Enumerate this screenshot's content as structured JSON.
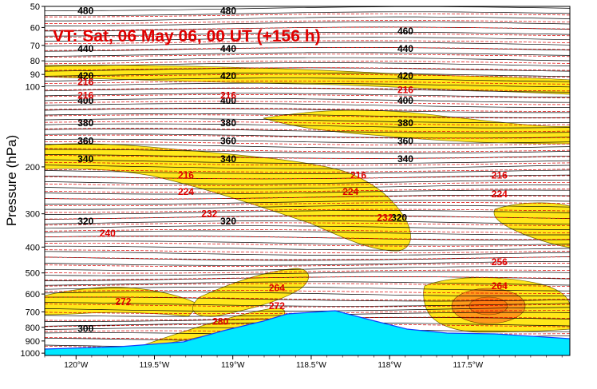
{
  "chart_data": {
    "type": "cross-section",
    "title": "VT:  Sat, 06 May 06, 00 UT (+156 h)",
    "ylabel": "Pressure (hPa)",
    "xlabel": "",
    "y_scale": "log",
    "y_reversed": true,
    "ylim": [
      1020,
      50
    ],
    "xlim": [
      -120.2,
      -116.85
    ],
    "y_ticks": [
      50,
      60,
      70,
      80,
      90,
      100,
      200,
      300,
      400,
      500,
      600,
      700,
      800,
      900,
      1000
    ],
    "x_ticks": [
      {
        "value": -120.0,
        "label": "120°W"
      },
      {
        "value": -119.5,
        "label": "119.5°W"
      },
      {
        "value": -119.0,
        "label": "119°W"
      },
      {
        "value": -118.5,
        "label": "118.5°W"
      },
      {
        "value": -118.0,
        "label": "118°W"
      },
      {
        "value": -117.5,
        "label": "117.5°W"
      }
    ],
    "colors": {
      "theta_lines": "#000000",
      "temperature_lines": "#e00000",
      "fill_low": "#ffe81a",
      "fill_high": "#ff9a1a",
      "terrain": "#00e8ff",
      "terrain_edge": "#1040ff"
    },
    "theta_labels": [
      {
        "x": -119.99,
        "p": 52,
        "text": "480"
      },
      {
        "x": -119.08,
        "p": 52,
        "text": "480"
      },
      {
        "x": -117.95,
        "p": 62,
        "text": "460"
      },
      {
        "x": -119.99,
        "p": 72,
        "text": "440"
      },
      {
        "x": -119.08,
        "p": 72,
        "text": "440"
      },
      {
        "x": -117.95,
        "p": 72,
        "text": "440"
      },
      {
        "x": -119.99,
        "p": 91,
        "text": "420"
      },
      {
        "x": -119.08,
        "p": 91,
        "text": "420"
      },
      {
        "x": -117.95,
        "p": 91,
        "text": "420"
      },
      {
        "x": -119.99,
        "p": 113,
        "text": "400"
      },
      {
        "x": -119.08,
        "p": 113,
        "text": "400"
      },
      {
        "x": -117.95,
        "p": 113,
        "text": "400"
      },
      {
        "x": -119.99,
        "p": 137,
        "text": "380"
      },
      {
        "x": -119.08,
        "p": 137,
        "text": "380"
      },
      {
        "x": -117.95,
        "p": 137,
        "text": "380"
      },
      {
        "x": -119.99,
        "p": 160,
        "text": "360"
      },
      {
        "x": -119.08,
        "p": 160,
        "text": "360"
      },
      {
        "x": -117.95,
        "p": 160,
        "text": "360"
      },
      {
        "x": -119.99,
        "p": 187,
        "text": "340"
      },
      {
        "x": -119.08,
        "p": 187,
        "text": "340"
      },
      {
        "x": -117.95,
        "p": 187,
        "text": "340"
      },
      {
        "x": -119.99,
        "p": 320,
        "text": "320"
      },
      {
        "x": -119.08,
        "p": 320,
        "text": "320"
      },
      {
        "x": -117.99,
        "p": 310,
        "text": "320"
      },
      {
        "x": -119.99,
        "p": 810,
        "text": "300"
      }
    ],
    "temperature_labels": [
      {
        "x": -119.99,
        "p": 96,
        "text": "216"
      },
      {
        "x": -119.99,
        "p": 108,
        "text": "216"
      },
      {
        "x": -119.08,
        "p": 108,
        "text": "216"
      },
      {
        "x": -117.95,
        "p": 103,
        "text": "216"
      },
      {
        "x": -119.35,
        "p": 215,
        "text": "216"
      },
      {
        "x": -118.25,
        "p": 215,
        "text": "216"
      },
      {
        "x": -117.35,
        "p": 215,
        "text": "216"
      },
      {
        "x": -119.35,
        "p": 248,
        "text": "224"
      },
      {
        "x": -118.3,
        "p": 248,
        "text": "224"
      },
      {
        "x": -117.35,
        "p": 253,
        "text": "224"
      },
      {
        "x": -119.2,
        "p": 300,
        "text": "232"
      },
      {
        "x": -118.08,
        "p": 310,
        "text": "232"
      },
      {
        "x": -119.85,
        "p": 355,
        "text": "240"
      },
      {
        "x": -117.35,
        "p": 455,
        "text": "256"
      },
      {
        "x": -118.77,
        "p": 570,
        "text": "264"
      },
      {
        "x": -117.35,
        "p": 560,
        "text": "264"
      },
      {
        "x": -119.75,
        "p": 640,
        "text": "272"
      },
      {
        "x": -118.77,
        "p": 665,
        "text": "272"
      },
      {
        "x": -119.13,
        "p": 760,
        "text": "280"
      }
    ]
  }
}
